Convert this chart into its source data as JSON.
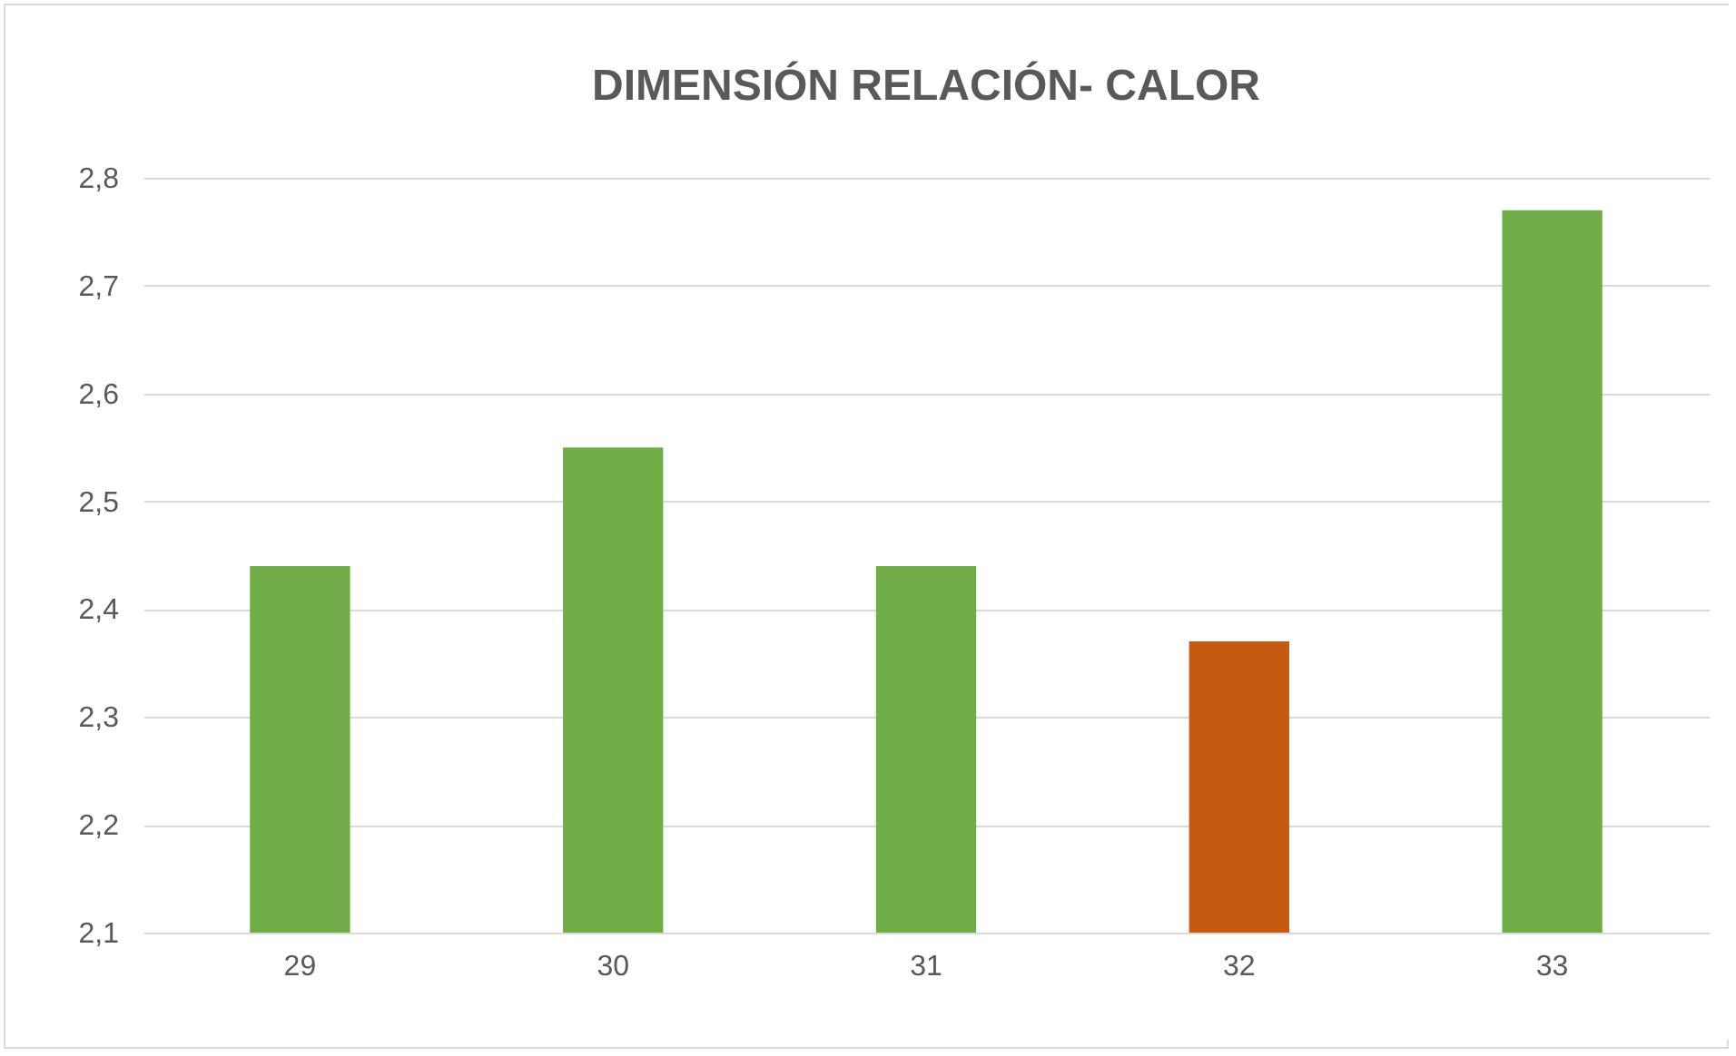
{
  "chart_data": {
    "type": "bar",
    "title": "DIMENSIÓN RELACIÓN- CALOR",
    "categories": [
      "29",
      "30",
      "31",
      "32",
      "33"
    ],
    "values": [
      2.44,
      2.55,
      2.44,
      2.37,
      2.77
    ],
    "colors": [
      "#70ad47",
      "#70ad47",
      "#70ad47",
      "#c55a11",
      "#70ad47"
    ],
    "ylim": [
      2.1,
      2.8
    ],
    "yticks": [
      {
        "value": 2.1,
        "label": "2,1"
      },
      {
        "value": 2.2,
        "label": "2,2"
      },
      {
        "value": 2.3,
        "label": "2,3"
      },
      {
        "value": 2.4,
        "label": "2,4"
      },
      {
        "value": 2.5,
        "label": "2,5"
      },
      {
        "value": 2.6,
        "label": "2,6"
      },
      {
        "value": 2.7,
        "label": "2,7"
      },
      {
        "value": 2.8,
        "label": "2,8"
      }
    ],
    "grid": "y"
  }
}
